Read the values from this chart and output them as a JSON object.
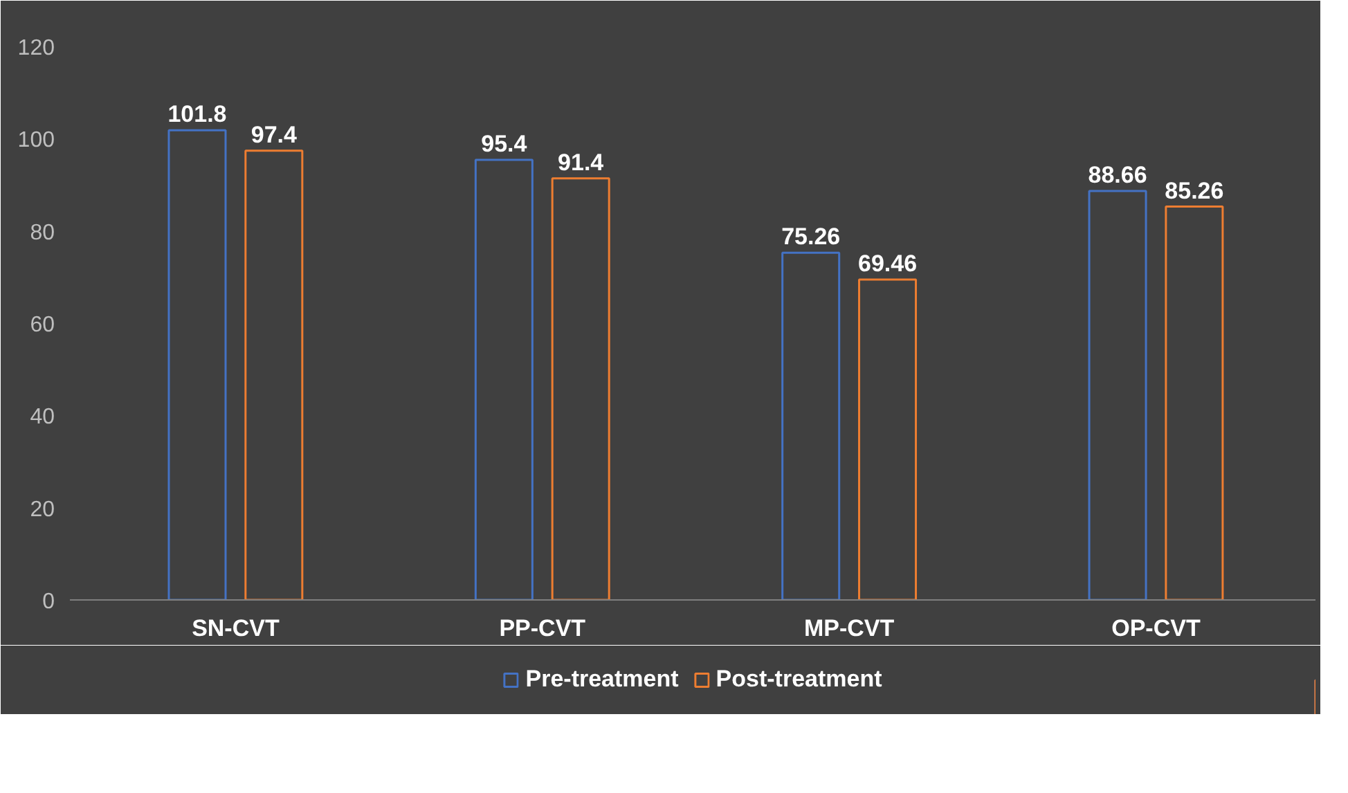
{
  "chart_data": {
    "type": "bar",
    "categories": [
      "SN-CVT",
      "PP-CVT",
      "MP-CVT",
      "OP-CVT"
    ],
    "series": [
      {
        "name": "Pre-treatment",
        "color": "#4472c4",
        "values": [
          101.8,
          95.4,
          75.26,
          88.66
        ]
      },
      {
        "name": "Post-treatment",
        "color": "#ed7d31",
        "values": [
          97.4,
          91.4,
          69.46,
          85.26
        ]
      }
    ],
    "ylim": [
      0,
      120
    ],
    "yticks": [
      0,
      20,
      40,
      60,
      80,
      100,
      120
    ],
    "grid": false,
    "legend": "bottom",
    "data_labels": true
  }
}
